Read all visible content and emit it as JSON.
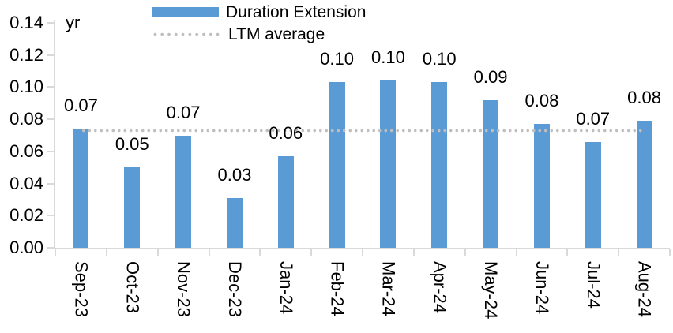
{
  "colors": {
    "bar": "#5B9BD5",
    "dots": "#BFBFBF",
    "axis_line": "#D9D9D9",
    "text": "#000000"
  },
  "chart_data": {
    "type": "bar",
    "title": "",
    "unit": "yr",
    "categories": [
      "Sep-23",
      "Oct-23",
      "Nov-23",
      "Dec-23",
      "Jan-24",
      "Feb-24",
      "Mar-24",
      "Apr-24",
      "May-24",
      "Jun-24",
      "Jul-24",
      "Aug-24"
    ],
    "values": [
      0.074,
      0.05,
      0.07,
      0.031,
      0.057,
      0.103,
      0.104,
      0.103,
      0.092,
      0.077,
      0.066,
      0.079
    ],
    "labels": [
      "0.07",
      "0.05",
      "0.07",
      "0.03",
      "0.06",
      "0.10",
      "0.10",
      "0.10",
      "0.09",
      "0.08",
      "0.07",
      "0.08"
    ],
    "ltm_average": 0.073,
    "ylim": [
      0,
      0.14
    ],
    "ytick_labels": [
      "0.14",
      "0.12",
      "0.10",
      "0.08",
      "0.06",
      "0.04",
      "0.02",
      "0.00"
    ],
    "legend": [
      {
        "label": "Duration Extension",
        "type": "bar"
      },
      {
        "label": "LTM average",
        "type": "dotted-line"
      }
    ],
    "legend_position": "top",
    "grid": false,
    "x_label_rotation": 90
  }
}
